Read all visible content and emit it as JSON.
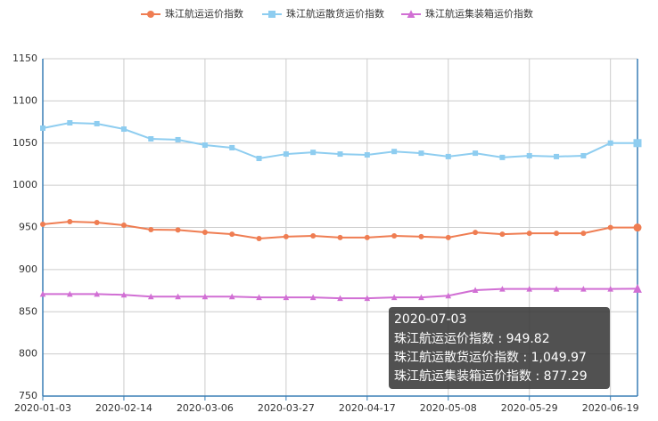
{
  "chart_data": {
    "type": "line",
    "categories": [
      "2020-01-03",
      null,
      null,
      "2020-02-14",
      null,
      null,
      "2020-03-06",
      null,
      null,
      "2020-03-27",
      null,
      null,
      "2020-04-17",
      null,
      null,
      "2020-05-08",
      null,
      null,
      "2020-05-29",
      null,
      null,
      "2020-06-19",
      null
    ],
    "series": [
      {
        "name": "珠江航运运价指数",
        "color": "#ef7d52",
        "marker": "circle",
        "values": [
          953.7,
          956.9,
          955.8,
          952.6,
          947.4,
          947,
          944.2,
          942,
          936.8,
          939,
          940,
          938,
          938,
          940,
          939,
          938,
          944,
          942,
          943,
          943,
          943,
          949.82,
          949.82
        ]
      },
      {
        "name": "珠江航运散货运价指数",
        "color": "#8ecdf0",
        "marker": "square",
        "values": [
          1067.7,
          1074,
          1073,
          1066.6,
          1055,
          1054,
          1047.6,
          1044.5,
          1031.8,
          1037,
          1039,
          1037,
          1036,
          1040,
          1038,
          1034,
          1038,
          1033,
          1035,
          1034,
          1035,
          1050,
          1049.97
        ]
      },
      {
        "name": "珠江航运集装箱运价指数",
        "color": "#d16fd4",
        "marker": "triangle",
        "values": [
          871,
          871,
          871,
          870,
          868,
          868,
          868,
          868,
          867,
          867,
          867,
          866,
          866,
          867,
          867,
          869,
          875.6,
          877,
          877,
          877,
          877,
          877,
          877.29
        ]
      }
    ],
    "ylim": [
      750,
      1150
    ],
    "yticks": [
      750,
      800,
      850,
      900,
      950,
      1000,
      1050,
      1100,
      1150
    ],
    "grid": true,
    "legend": "top",
    "tooltip": {
      "title": "2020-07-03",
      "separator": " : ",
      "labels": [
        "949.82",
        "1,049.97",
        "877.29"
      ]
    }
  }
}
